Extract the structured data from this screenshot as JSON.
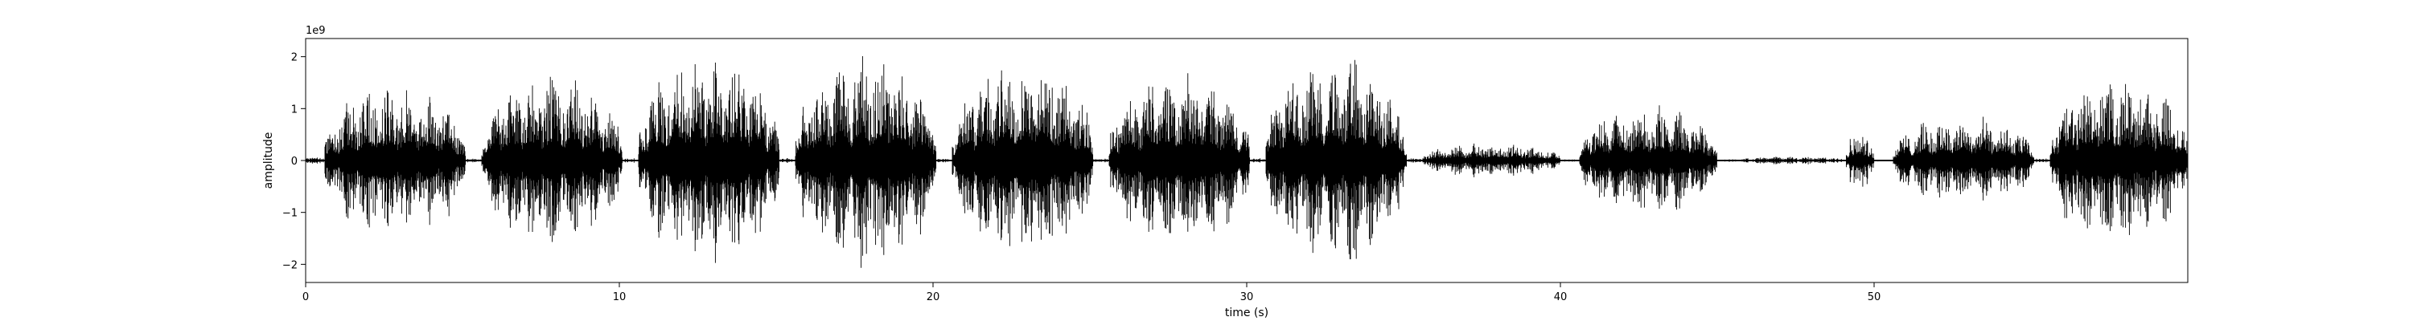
{
  "chart_data": {
    "type": "line",
    "title": "",
    "xlabel": "time (s)",
    "ylabel": "amplitude",
    "offset_text": "1e9",
    "xlim": [
      0,
      60
    ],
    "ylim": [
      -2.35,
      2.35
    ],
    "x_ticks": [
      0,
      10,
      20,
      30,
      40,
      50
    ],
    "y_ticks": [
      -2,
      -1,
      0,
      1,
      2
    ],
    "x_tick_labels": [
      "0",
      "10",
      "20",
      "30",
      "40",
      "50"
    ],
    "y_tick_labels": [
      "−2",
      "−1",
      "0",
      "1",
      "2"
    ],
    "grid": false,
    "legend": "none",
    "line_color": "#000000",
    "series": [
      {
        "segments": [
          {
            "start": 0.0,
            "end": 0.6,
            "peak": 0.08
          },
          {
            "start": 0.6,
            "end": 5.1,
            "peak": 1.55
          },
          {
            "start": 5.1,
            "end": 5.6,
            "peak": 0.05
          },
          {
            "start": 5.6,
            "end": 10.1,
            "peak": 1.75
          },
          {
            "start": 10.1,
            "end": 10.6,
            "peak": 0.05
          },
          {
            "start": 10.6,
            "end": 15.1,
            "peak": 2.1
          },
          {
            "start": 15.1,
            "end": 15.6,
            "peak": 0.05
          },
          {
            "start": 15.6,
            "end": 20.1,
            "peak": 2.15
          },
          {
            "start": 20.1,
            "end": 20.6,
            "peak": 0.05
          },
          {
            "start": 20.6,
            "end": 25.1,
            "peak": 2.1
          },
          {
            "start": 25.1,
            "end": 25.6,
            "peak": 0.05
          },
          {
            "start": 25.6,
            "end": 30.1,
            "peak": 1.75
          },
          {
            "start": 30.1,
            "end": 30.6,
            "peak": 0.05
          },
          {
            "start": 30.6,
            "end": 35.1,
            "peak": 2.15
          },
          {
            "start": 35.1,
            "end": 35.6,
            "peak": 0.05
          },
          {
            "start": 35.6,
            "end": 40.0,
            "peak": 0.35
          },
          {
            "start": 40.0,
            "end": 40.6,
            "peak": 0.03
          },
          {
            "start": 40.6,
            "end": 45.0,
            "peak": 1.1
          },
          {
            "start": 45.0,
            "end": 45.7,
            "peak": 0.03
          },
          {
            "start": 45.7,
            "end": 49.1,
            "peak": 0.08
          },
          {
            "start": 49.1,
            "end": 50.0,
            "peak": 0.6
          },
          {
            "start": 50.0,
            "end": 50.6,
            "peak": 0.03
          },
          {
            "start": 50.6,
            "end": 55.1,
            "peak": 0.9
          },
          {
            "start": 55.1,
            "end": 55.6,
            "peak": 0.05
          },
          {
            "start": 55.6,
            "end": 60.0,
            "peak": 1.7
          }
        ]
      }
    ]
  }
}
